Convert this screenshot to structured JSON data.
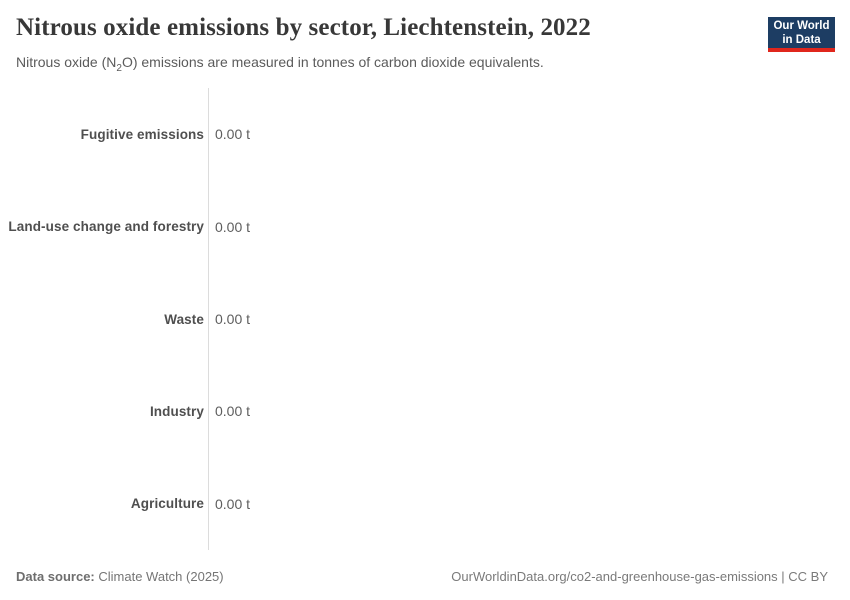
{
  "header": {
    "title": "Nitrous oxide emissions by sector, Liechtenstein, 2022",
    "subtitle_pre": "Nitrous oxide (N",
    "subtitle_sub": "2",
    "subtitle_post": "O) emissions are measured in tonnes of carbon dioxide equivalents."
  },
  "logo": {
    "line1": "Our World",
    "line2": "in Data",
    "bg_color": "#1d3d63",
    "accent_color": "#e0261c"
  },
  "chart_data": {
    "type": "bar",
    "orientation": "horizontal",
    "title": "Nitrous oxide emissions by sector, Liechtenstein, 2022",
    "entity": "Liechtenstein",
    "year": 2022,
    "unit": "tonnes of CO2 equivalents",
    "categories": [
      "Fugitive emissions",
      "Land-use change and forestry",
      "Waste",
      "Industry",
      "Agriculture"
    ],
    "values": [
      0,
      0,
      0,
      0,
      0
    ],
    "value_labels": [
      "0.00 t",
      "0.00 t",
      "0.00 t",
      "0.00 t",
      "0.00 t"
    ],
    "value_axis_visible": false,
    "grid": false,
    "legend": "none",
    "axis_line_color": "#dcdcdc"
  },
  "footer": {
    "source_label": "Data source:",
    "source_value": "Climate Watch (2025)",
    "attribution": "OurWorldinData.org/co2-and-greenhouse-gas-emissions | CC BY"
  },
  "colors": {
    "title_text": "#383838",
    "subtitle_text": "#5b5b5b",
    "category_label": "#4f4f4f",
    "value_label": "#5e5e5e",
    "footer_text": "#757575"
  }
}
